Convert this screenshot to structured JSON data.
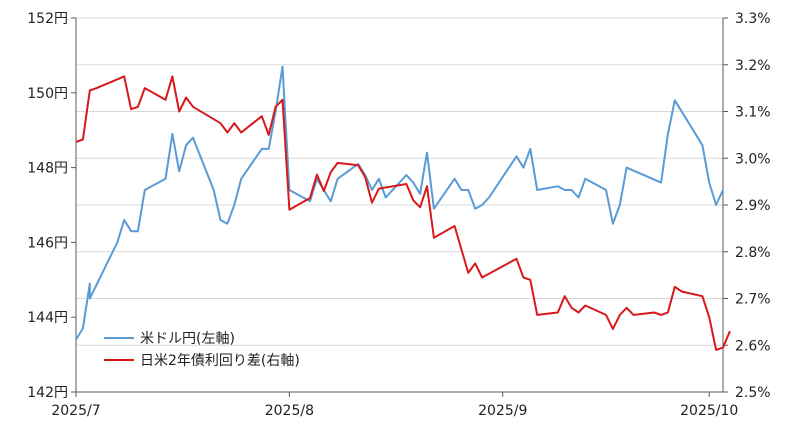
{
  "chart_data": {
    "type": "line",
    "left_axis": {
      "min": 142,
      "max": 152,
      "step": 2,
      "tick_labels": [
        "142円",
        "144円",
        "146円",
        "148円",
        "150円",
        "152円"
      ]
    },
    "right_axis": {
      "min": 2.5,
      "max": 3.3,
      "step": 0.1,
      "tick_labels": [
        "2.5%",
        "2.6%",
        "2.7%",
        "2.8%",
        "2.9%",
        "3.0%",
        "3.1%",
        "3.2%",
        "3.3%"
      ]
    },
    "x_axis": {
      "start": "2025-07-01",
      "end": "2025-10-03",
      "ticks": [
        {
          "date": "2025-07-01",
          "label": "2025/7"
        },
        {
          "date": "2025-08-01",
          "label": "2025/8"
        },
        {
          "date": "2025-09-01",
          "label": "2025/9"
        },
        {
          "date": "2025-10-01",
          "label": "2025/10"
        }
      ]
    },
    "grid": "horizontal",
    "legend_position": "bottom-left",
    "series": [
      {
        "name": "米ドル円(左軸)",
        "axis": "left",
        "color": "#5b9bd5",
        "points": [
          [
            "2025-07-01",
            143.4
          ],
          [
            "2025-07-02",
            143.7
          ],
          [
            "2025-07-03",
            144.9
          ],
          [
            "2025-07-03",
            144.5
          ],
          [
            "2025-07-07",
            146.0
          ],
          [
            "2025-07-08",
            146.6
          ],
          [
            "2025-07-09",
            146.3
          ],
          [
            "2025-07-10",
            146.3
          ],
          [
            "2025-07-11",
            147.4
          ],
          [
            "2025-07-14",
            147.7
          ],
          [
            "2025-07-15",
            148.9
          ],
          [
            "2025-07-16",
            147.9
          ],
          [
            "2025-07-17",
            148.6
          ],
          [
            "2025-07-18",
            148.8
          ],
          [
            "2025-07-21",
            147.4
          ],
          [
            "2025-07-22",
            146.6
          ],
          [
            "2025-07-23",
            146.5
          ],
          [
            "2025-07-24",
            147.0
          ],
          [
            "2025-07-25",
            147.7
          ],
          [
            "2025-07-28",
            148.5
          ],
          [
            "2025-07-29",
            148.5
          ],
          [
            "2025-07-30",
            149.5
          ],
          [
            "2025-07-31",
            150.7
          ],
          [
            "2025-08-01",
            147.4
          ],
          [
            "2025-08-04",
            147.1
          ],
          [
            "2025-08-05",
            147.7
          ],
          [
            "2025-08-06",
            147.4
          ],
          [
            "2025-08-07",
            147.1
          ],
          [
            "2025-08-08",
            147.7
          ],
          [
            "2025-08-11",
            148.1
          ],
          [
            "2025-08-12",
            147.8
          ],
          [
            "2025-08-13",
            147.4
          ],
          [
            "2025-08-14",
            147.7
          ],
          [
            "2025-08-15",
            147.2
          ],
          [
            "2025-08-18",
            147.8
          ],
          [
            "2025-08-19",
            147.6
          ],
          [
            "2025-08-20",
            147.3
          ],
          [
            "2025-08-21",
            148.4
          ],
          [
            "2025-08-22",
            146.9
          ],
          [
            "2025-08-25",
            147.7
          ],
          [
            "2025-08-26",
            147.4
          ],
          [
            "2025-08-27",
            147.4
          ],
          [
            "2025-08-28",
            146.9
          ],
          [
            "2025-08-29",
            147.0
          ],
          [
            "2025-08-30",
            147.2
          ],
          [
            "2025-09-03",
            148.3
          ],
          [
            "2025-09-04",
            148.0
          ],
          [
            "2025-09-05",
            148.5
          ],
          [
            "2025-09-06",
            147.4
          ],
          [
            "2025-09-09",
            147.5
          ],
          [
            "2025-09-10",
            147.4
          ],
          [
            "2025-09-11",
            147.4
          ],
          [
            "2025-09-12",
            147.2
          ],
          [
            "2025-09-13",
            147.7
          ],
          [
            "2025-09-16",
            147.4
          ],
          [
            "2025-09-17",
            146.5
          ],
          [
            "2025-09-18",
            147.0
          ],
          [
            "2025-09-19",
            148.0
          ],
          [
            "2025-09-24",
            147.6
          ],
          [
            "2025-09-25",
            148.9
          ],
          [
            "2025-09-26",
            149.8
          ],
          [
            "2025-09-30",
            148.6
          ],
          [
            "2025-10-01",
            147.6
          ],
          [
            "2025-10-02",
            147.0
          ],
          [
            "2025-10-03",
            147.4
          ]
        ]
      },
      {
        "name": "日米2年債利回り差(右軸)",
        "axis": "right",
        "color": "#d7191c",
        "points": [
          [
            "2025-07-01",
            3.035
          ],
          [
            "2025-07-02",
            3.04
          ],
          [
            "2025-07-03",
            3.145
          ],
          [
            "2025-07-04",
            3.15
          ],
          [
            "2025-07-08",
            3.175
          ],
          [
            "2025-07-09",
            3.105
          ],
          [
            "2025-07-10",
            3.11
          ],
          [
            "2025-07-11",
            3.15
          ],
          [
            "2025-07-14",
            3.125
          ],
          [
            "2025-07-15",
            3.175
          ],
          [
            "2025-07-16",
            3.1
          ],
          [
            "2025-07-17",
            3.13
          ],
          [
            "2025-07-18",
            3.11
          ],
          [
            "2025-07-22",
            3.075
          ],
          [
            "2025-07-23",
            3.055
          ],
          [
            "2025-07-24",
            3.075
          ],
          [
            "2025-07-25",
            3.055
          ],
          [
            "2025-07-28",
            3.09
          ],
          [
            "2025-07-29",
            3.05
          ],
          [
            "2025-07-30",
            3.11
          ],
          [
            "2025-07-31",
            3.125
          ],
          [
            "2025-08-01",
            2.89
          ],
          [
            "2025-08-04",
            2.915
          ],
          [
            "2025-08-05",
            2.965
          ],
          [
            "2025-08-06",
            2.93
          ],
          [
            "2025-08-07",
            2.97
          ],
          [
            "2025-08-08",
            2.99
          ],
          [
            "2025-08-11",
            2.985
          ],
          [
            "2025-08-12",
            2.96
          ],
          [
            "2025-08-13",
            2.905
          ],
          [
            "2025-08-14",
            2.935
          ],
          [
            "2025-08-18",
            2.945
          ],
          [
            "2025-08-19",
            2.91
          ],
          [
            "2025-08-20",
            2.895
          ],
          [
            "2025-08-21",
            2.94
          ],
          [
            "2025-08-22",
            2.83
          ],
          [
            "2025-08-25",
            2.855
          ],
          [
            "2025-08-26",
            2.805
          ],
          [
            "2025-08-27",
            2.755
          ],
          [
            "2025-08-28",
            2.775
          ],
          [
            "2025-08-29",
            2.745
          ],
          [
            "2025-09-03",
            2.785
          ],
          [
            "2025-09-04",
            2.745
          ],
          [
            "2025-09-05",
            2.74
          ],
          [
            "2025-09-06",
            2.665
          ],
          [
            "2025-09-09",
            2.67
          ],
          [
            "2025-09-10",
            2.705
          ],
          [
            "2025-09-11",
            2.68
          ],
          [
            "2025-09-12",
            2.67
          ],
          [
            "2025-09-13",
            2.685
          ],
          [
            "2025-09-16",
            2.665
          ],
          [
            "2025-09-17",
            2.635
          ],
          [
            "2025-09-18",
            2.665
          ],
          [
            "2025-09-19",
            2.68
          ],
          [
            "2025-09-20",
            2.665
          ],
          [
            "2025-09-23",
            2.67
          ],
          [
            "2025-09-24",
            2.665
          ],
          [
            "2025-09-25",
            2.67
          ],
          [
            "2025-09-26",
            2.725
          ],
          [
            "2025-09-27",
            2.715
          ],
          [
            "2025-09-30",
            2.705
          ],
          [
            "2025-10-01",
            2.66
          ],
          [
            "2025-10-02",
            2.59
          ],
          [
            "2025-10-03",
            2.595
          ],
          [
            "2025-10-04",
            2.63
          ]
        ]
      }
    ]
  }
}
